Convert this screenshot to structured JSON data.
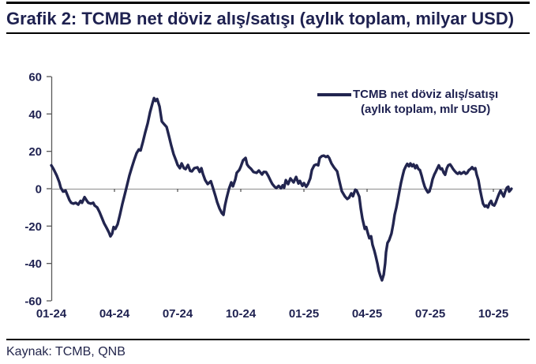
{
  "header": {
    "title": "Grafik 2: TCMB net döviz alış/satışı (aylık toplam, milyar USD)"
  },
  "legend": {
    "line1": "TCMB net döviz alış/satışı",
    "line2": "(aylık toplam, mlr USD)"
  },
  "footer": {
    "source": "Kaynak: TCMB, QNB"
  },
  "colors": {
    "navy_text": "#1e2150",
    "line": "#22254f",
    "zero_line": "#8c8c8c",
    "axis": "#595959",
    "rule": "#000000"
  },
  "chart_data": {
    "type": "line",
    "title": "Grafik 2: TCMB net döviz alış/satışı (aylık toplam, milyar USD)",
    "xlabel": "",
    "ylabel": "",
    "ylim": [
      -60,
      60
    ],
    "y_ticks": [
      60,
      40,
      20,
      0,
      -20,
      -40,
      -60
    ],
    "x_unit": "months since 2024-01 (0 = 01-24)",
    "x_ticks": {
      "labels": [
        "01-24",
        "04-24",
        "07-24",
        "10-24",
        "01-25",
        "04-25",
        "07-25",
        "10-25"
      ],
      "months": [
        0,
        3,
        6,
        9,
        12,
        15,
        18,
        21
      ]
    },
    "grid": "zero-line-only",
    "legend_position": "top-right",
    "series": [
      {
        "name": "TCMB net döviz alış/satışı (aylık toplam, mlr USD)",
        "points": [
          [
            0.0,
            12.5
          ],
          [
            0.11,
            10.5
          ],
          [
            0.26,
            7
          ],
          [
            0.38,
            3.5
          ],
          [
            0.45,
            0.5
          ],
          [
            0.56,
            -1.5
          ],
          [
            0.68,
            -1
          ],
          [
            0.75,
            -3
          ],
          [
            0.86,
            -6
          ],
          [
            0.94,
            -7.5
          ],
          [
            1.05,
            -8
          ],
          [
            1.16,
            -7.5
          ],
          [
            1.28,
            -8.5
          ],
          [
            1.39,
            -6.5
          ],
          [
            1.46,
            -7.5
          ],
          [
            1.58,
            -4.5
          ],
          [
            1.69,
            -6.5
          ],
          [
            1.76,
            -7.5
          ],
          [
            1.88,
            -8
          ],
          [
            1.99,
            -7.5
          ],
          [
            2.06,
            -9
          ],
          [
            2.18,
            -10
          ],
          [
            2.29,
            -12.5
          ],
          [
            2.4,
            -15.5
          ],
          [
            2.51,
            -18.5
          ],
          [
            2.63,
            -21
          ],
          [
            2.74,
            -23.5
          ],
          [
            2.81,
            -25.5
          ],
          [
            2.89,
            -24
          ],
          [
            2.96,
            -20.5
          ],
          [
            3.04,
            -21.5
          ],
          [
            3.15,
            -19
          ],
          [
            3.26,
            -14
          ],
          [
            3.38,
            -8
          ],
          [
            3.49,
            -3
          ],
          [
            3.6,
            2
          ],
          [
            3.71,
            7
          ],
          [
            3.83,
            11.5
          ],
          [
            3.94,
            15.5
          ],
          [
            4.05,
            19
          ],
          [
            4.16,
            21
          ],
          [
            4.24,
            20.5
          ],
          [
            4.35,
            25
          ],
          [
            4.46,
            30
          ],
          [
            4.58,
            35
          ],
          [
            4.69,
            41
          ],
          [
            4.8,
            45.5
          ],
          [
            4.88,
            48.5
          ],
          [
            4.95,
            47
          ],
          [
            5.03,
            48
          ],
          [
            5.14,
            44
          ],
          [
            5.25,
            36
          ],
          [
            5.36,
            34.5
          ],
          [
            5.48,
            33
          ],
          [
            5.59,
            28
          ],
          [
            5.7,
            23
          ],
          [
            5.81,
            18.5
          ],
          [
            5.93,
            15
          ],
          [
            6.0,
            12.7
          ],
          [
            6.11,
            11
          ],
          [
            6.19,
            13.5
          ],
          [
            6.3,
            11
          ],
          [
            6.38,
            10.5
          ],
          [
            6.49,
            12.7
          ],
          [
            6.6,
            9.5
          ],
          [
            6.68,
            9.3
          ],
          [
            6.79,
            11
          ],
          [
            6.94,
            11.4
          ],
          [
            7.05,
            9
          ],
          [
            7.13,
            11
          ],
          [
            7.2,
            8
          ],
          [
            7.31,
            4.6
          ],
          [
            7.43,
            2.5
          ],
          [
            7.58,
            4
          ],
          [
            7.69,
            0
          ],
          [
            7.8,
            -4
          ],
          [
            7.88,
            -7.2
          ],
          [
            7.99,
            -10.6
          ],
          [
            8.1,
            -13
          ],
          [
            8.18,
            -14
          ],
          [
            8.25,
            -9
          ],
          [
            8.33,
            -5
          ],
          [
            8.44,
            0
          ],
          [
            8.55,
            3.4
          ],
          [
            8.63,
            1.3
          ],
          [
            8.74,
            5
          ],
          [
            8.81,
            8.5
          ],
          [
            8.93,
            10
          ],
          [
            9.0,
            11.8
          ],
          [
            9.11,
            15.2
          ],
          [
            9.23,
            16.5
          ],
          [
            9.3,
            13
          ],
          [
            9.38,
            11.8
          ],
          [
            9.49,
            10.6
          ],
          [
            9.6,
            9
          ],
          [
            9.75,
            8.5
          ],
          [
            9.86,
            9.7
          ],
          [
            10.01,
            7.6
          ],
          [
            10.09,
            9
          ],
          [
            10.2,
            8.9
          ],
          [
            10.31,
            6.8
          ],
          [
            10.43,
            4
          ],
          [
            10.5,
            2.5
          ],
          [
            10.61,
            1
          ],
          [
            10.69,
            0.4
          ],
          [
            10.8,
            1.5
          ],
          [
            10.91,
            0.2
          ],
          [
            10.99,
            1.8
          ],
          [
            11.06,
            0.5
          ],
          [
            11.14,
            4.6
          ],
          [
            11.25,
            2.5
          ],
          [
            11.36,
            5.5
          ],
          [
            11.51,
            3.4
          ],
          [
            11.63,
            6.3
          ],
          [
            11.74,
            2.8
          ],
          [
            11.81,
            4.2
          ],
          [
            11.93,
            1.5
          ],
          [
            12.0,
            3
          ],
          [
            12.11,
            1
          ],
          [
            12.19,
            2.5
          ],
          [
            12.3,
            5.5
          ],
          [
            12.38,
            10
          ],
          [
            12.49,
            12.5
          ],
          [
            12.6,
            13
          ],
          [
            12.68,
            12.5
          ],
          [
            12.75,
            16.5
          ],
          [
            12.86,
            17.5
          ],
          [
            12.94,
            17.7
          ],
          [
            13.05,
            17
          ],
          [
            13.13,
            17.5
          ],
          [
            13.2,
            16.5
          ],
          [
            13.31,
            13.5
          ],
          [
            13.43,
            11.4
          ],
          [
            13.58,
            9.3
          ],
          [
            13.69,
            3.8
          ],
          [
            13.8,
            -1.3
          ],
          [
            13.95,
            -4.2
          ],
          [
            14.06,
            -5.5
          ],
          [
            14.14,
            -4.8
          ],
          [
            14.25,
            -2.5
          ],
          [
            14.33,
            -4
          ],
          [
            14.44,
            -0.5
          ],
          [
            14.51,
            -1
          ],
          [
            14.63,
            -4.2
          ],
          [
            14.7,
            -10.5
          ],
          [
            14.78,
            -16
          ],
          [
            14.89,
            -21.5
          ],
          [
            14.96,
            -20.5
          ],
          [
            15.04,
            -24
          ],
          [
            15.11,
            -26.5
          ],
          [
            15.19,
            -25.5
          ],
          [
            15.26,
            -30
          ],
          [
            15.34,
            -33
          ],
          [
            15.41,
            -36
          ],
          [
            15.49,
            -40
          ],
          [
            15.56,
            -44
          ],
          [
            15.64,
            -47
          ],
          [
            15.71,
            -49
          ],
          [
            15.79,
            -46
          ],
          [
            15.86,
            -40
          ],
          [
            15.9,
            -34
          ],
          [
            15.97,
            -29
          ],
          [
            16.05,
            -27.5
          ],
          [
            16.16,
            -24
          ],
          [
            16.24,
            -19
          ],
          [
            16.31,
            -14
          ],
          [
            16.39,
            -10
          ],
          [
            16.46,
            -6
          ],
          [
            16.54,
            -1
          ],
          [
            16.61,
            3
          ],
          [
            16.69,
            7
          ],
          [
            16.76,
            10
          ],
          [
            16.84,
            12
          ],
          [
            16.91,
            13.3
          ],
          [
            16.99,
            12
          ],
          [
            17.06,
            13.5
          ],
          [
            17.14,
            12
          ],
          [
            17.21,
            13
          ],
          [
            17.29,
            11
          ],
          [
            17.36,
            12.5
          ],
          [
            17.44,
            10.5
          ],
          [
            17.51,
            10
          ],
          [
            17.59,
            7
          ],
          [
            17.66,
            4
          ],
          [
            17.74,
            1
          ],
          [
            17.81,
            -0.5
          ],
          [
            17.89,
            -2
          ],
          [
            17.96,
            -1.5
          ],
          [
            18.04,
            1.5
          ],
          [
            18.11,
            5
          ],
          [
            18.19,
            7.5
          ],
          [
            18.26,
            9
          ],
          [
            18.34,
            11
          ],
          [
            18.41,
            12.5
          ],
          [
            18.49,
            10.5
          ],
          [
            18.56,
            10.8
          ],
          [
            18.64,
            8.5
          ],
          [
            18.71,
            7.5
          ],
          [
            18.79,
            11
          ],
          [
            18.86,
            12.5
          ],
          [
            18.94,
            13
          ],
          [
            19.01,
            12
          ],
          [
            19.09,
            10.5
          ],
          [
            19.16,
            9.5
          ],
          [
            19.24,
            8.5
          ],
          [
            19.31,
            8
          ],
          [
            19.39,
            8.8
          ],
          [
            19.46,
            8
          ],
          [
            19.54,
            8.5
          ],
          [
            19.61,
            9
          ],
          [
            19.69,
            8
          ],
          [
            19.76,
            8.5
          ],
          [
            19.84,
            10
          ],
          [
            19.91,
            10.5
          ],
          [
            19.99,
            11.5
          ],
          [
            20.06,
            10.5
          ],
          [
            20.14,
            11
          ],
          [
            20.21,
            7.5
          ],
          [
            20.29,
            4.5
          ],
          [
            20.36,
            0
          ],
          [
            20.44,
            -4.5
          ],
          [
            20.51,
            -8
          ],
          [
            20.59,
            -9.5
          ],
          [
            20.66,
            -9
          ],
          [
            20.74,
            -10
          ],
          [
            20.81,
            -8
          ],
          [
            20.89,
            -6.5
          ],
          [
            20.96,
            -8.5
          ],
          [
            21.04,
            -9
          ],
          [
            21.11,
            -7.5
          ],
          [
            21.19,
            -5
          ],
          [
            21.26,
            -3
          ],
          [
            21.34,
            -1
          ],
          [
            21.41,
            -2.5
          ],
          [
            21.49,
            -4.2
          ],
          [
            21.56,
            -1.7
          ],
          [
            21.64,
            0.5
          ],
          [
            21.71,
            1
          ],
          [
            21.75,
            -1.5
          ],
          [
            21.83,
            -0.5
          ],
          [
            21.86,
            0
          ]
        ]
      }
    ]
  }
}
